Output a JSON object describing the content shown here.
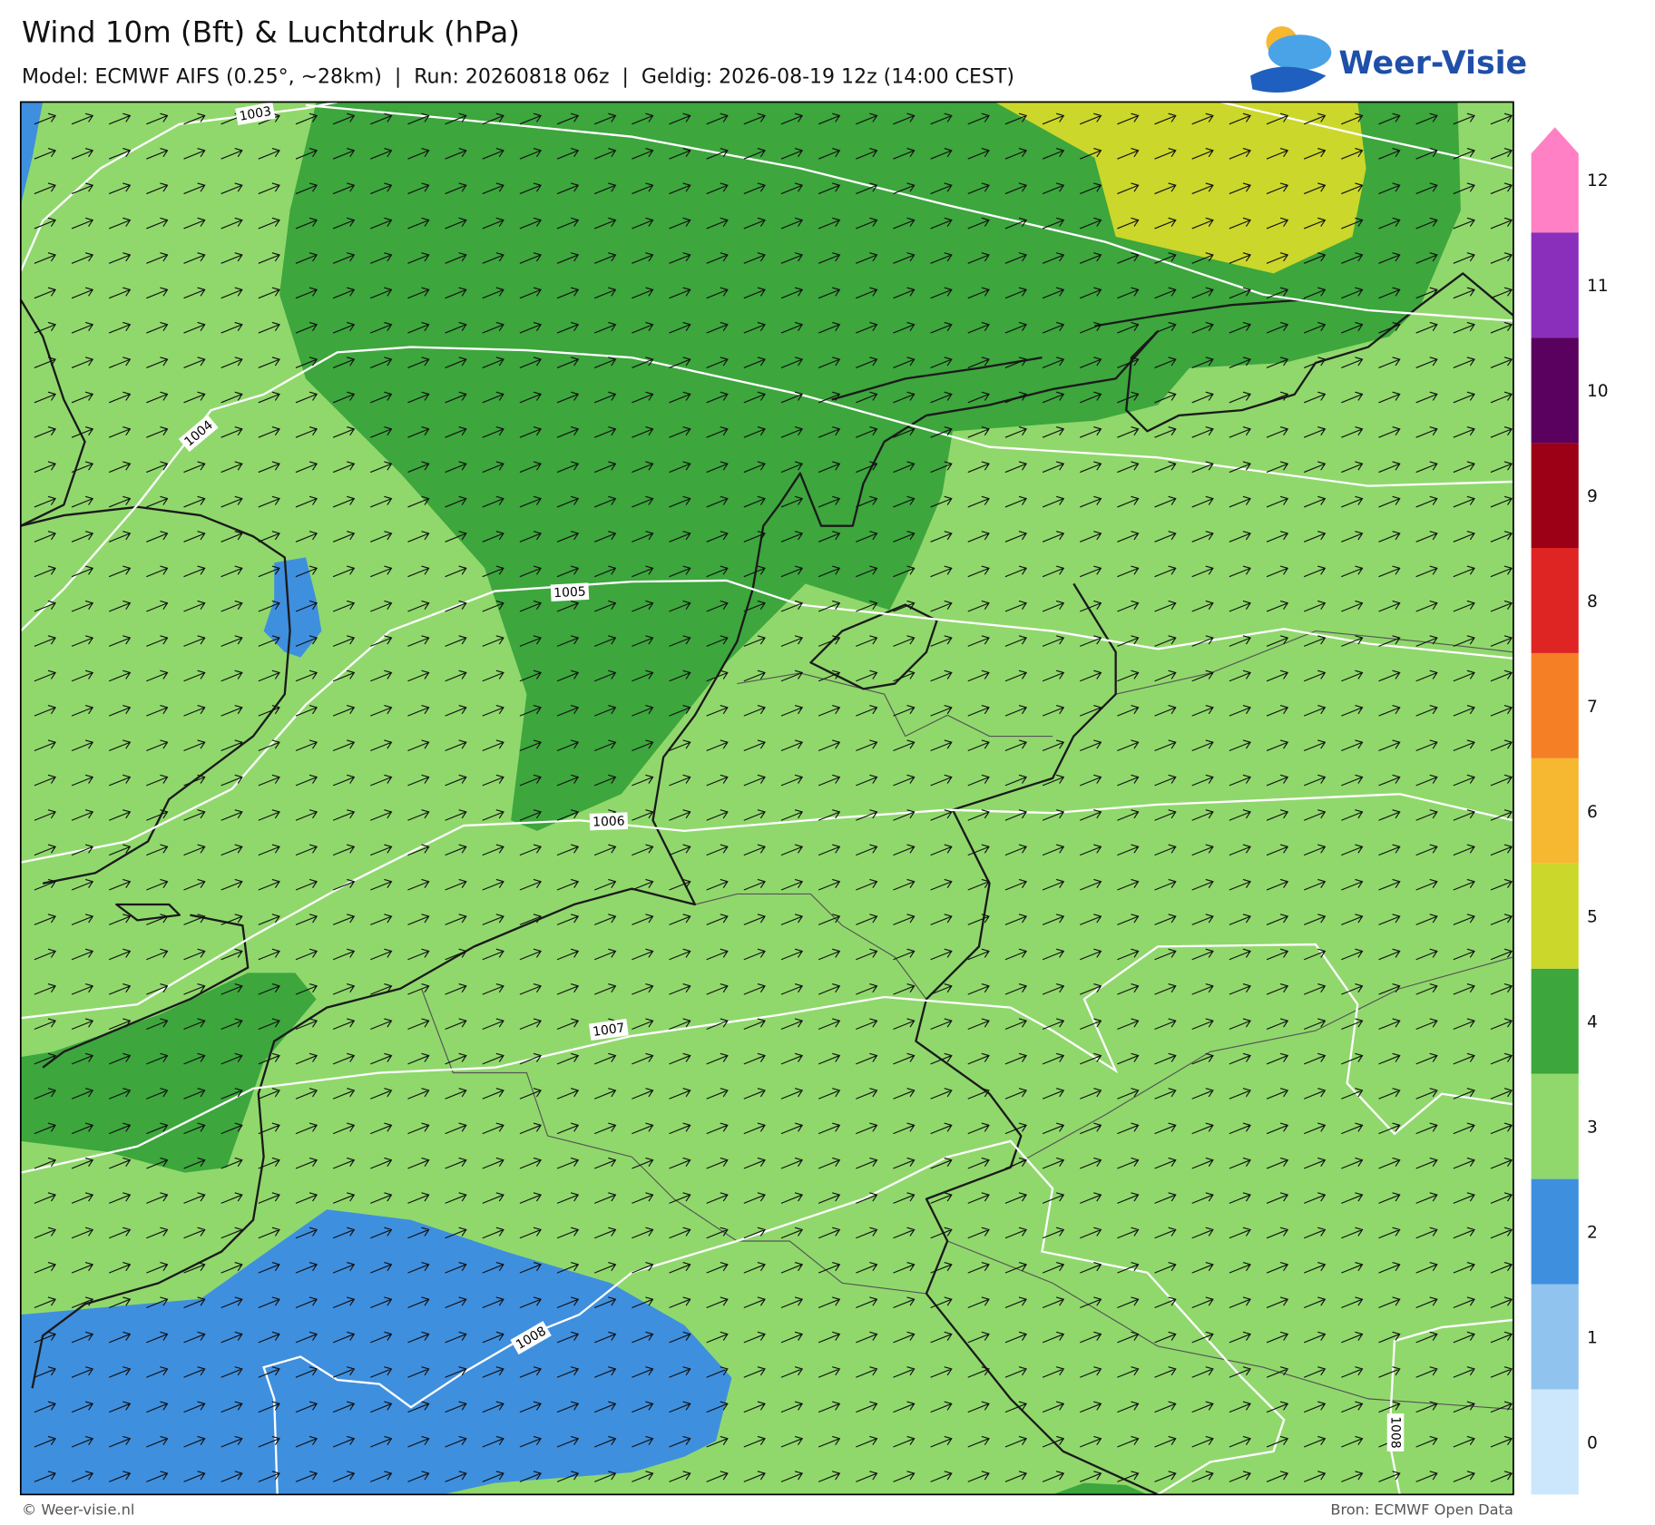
{
  "header": {
    "title": "Wind 10m (Bft) & Luchtdruk (hPa)",
    "subtitle": "Model: ECMWF AIFS (0.25°, ~28km)  |  Run: 20260818 06z  |  Geldig: 2026-08-19 12z (14:00 CEST)",
    "logo": "Weer-Visie"
  },
  "legend": {
    "labels": [
      "0",
      "1",
      "2",
      "3",
      "4",
      "5",
      "6",
      "7",
      "8",
      "9",
      "10",
      "11",
      "12"
    ],
    "colors": [
      "#cce6fb",
      "#90c4ef",
      "#3f8fdf",
      "#90d86c",
      "#3da63d",
      "#cbd72a",
      "#f6b731",
      "#f47f25",
      "#df2424",
      "#9b0016",
      "#5a005f",
      "#8a2fbb",
      "#ff80c4"
    ]
  },
  "isobar_labels": [
    "1003",
    "1004",
    "1005",
    "1006",
    "1007",
    "1008",
    "1008"
  ],
  "footer": {
    "left": "© Weer-visie.nl",
    "right": "Bron: ECMWF Open Data"
  }
}
